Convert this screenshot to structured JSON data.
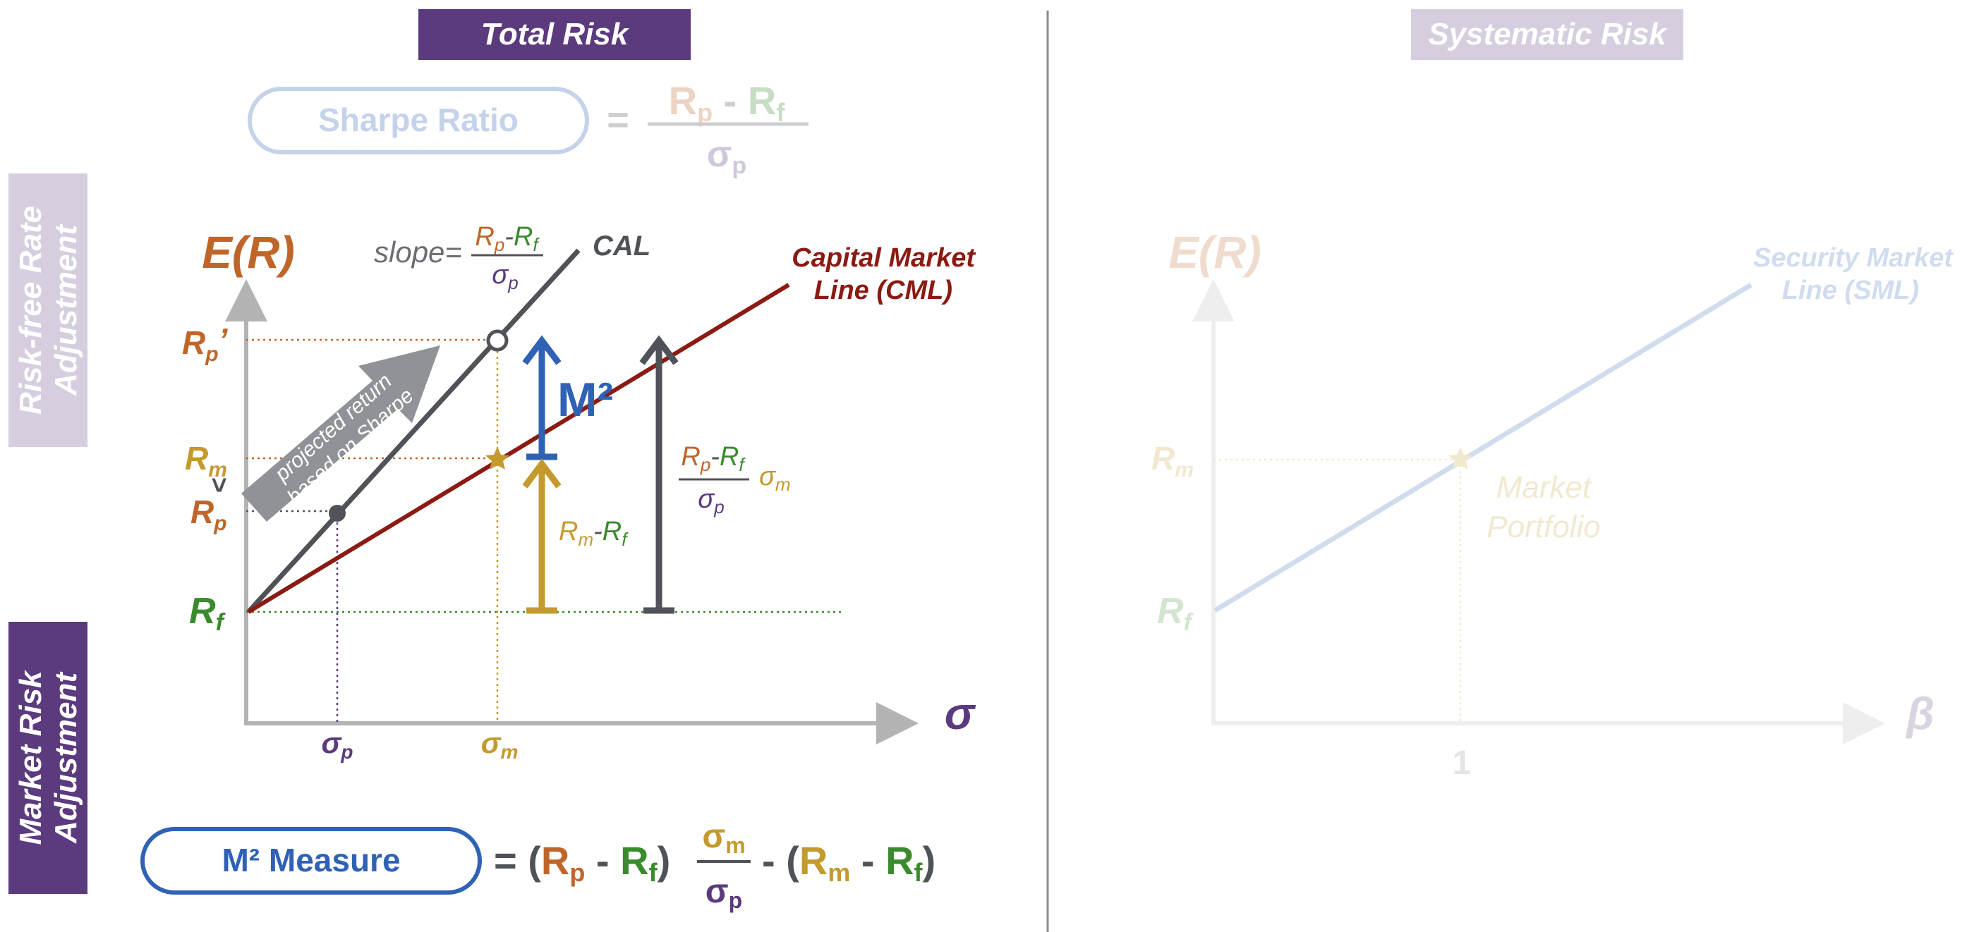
{
  "left_panel": {
    "header": "Total Risk",
    "sharpe": {
      "label": "Sharpe Ratio",
      "equals": "=",
      "numerator": [
        "R",
        "p",
        " - ",
        "R",
        "f"
      ],
      "denominator": [
        "σ",
        "p"
      ]
    },
    "side_labels": {
      "risk_free": [
        "Risk-free Rate",
        "Adjustment"
      ],
      "market_risk": [
        "Market Risk",
        "Adjustment"
      ]
    },
    "y_axis_label": "E(R)",
    "x_axis_label": "σ",
    "y_ticks": {
      "rp_prime": [
        "R",
        "p",
        "’"
      ],
      "rm": [
        "R",
        "m"
      ],
      "gt": ">",
      "rp": [
        "R",
        "p"
      ],
      "rf": [
        "R",
        "f"
      ]
    },
    "x_ticks": {
      "sigma_p": [
        "σ",
        "p"
      ],
      "sigma_m": [
        "σ",
        "m"
      ]
    },
    "slope": {
      "prefix": "slope=",
      "num": [
        "R",
        "p",
        "-",
        "R",
        "f"
      ],
      "den": [
        "σ",
        "p"
      ]
    },
    "cal_label": "CAL",
    "cml_label": [
      "Capital Market",
      "Line (CML)"
    ],
    "arrow_text": [
      "projected return",
      "based on Sharpe"
    ],
    "m2_label": "M²",
    "rm_rf_label": [
      "R",
      "m",
      "-",
      "R",
      "f"
    ],
    "sharpe_times_sigma": {
      "num": [
        "R",
        "p",
        "-",
        "R",
        "f"
      ],
      "den": [
        "σ",
        "p"
      ],
      "tail": [
        "σ",
        "m"
      ]
    },
    "m2_measure": {
      "label": "M² Measure",
      "formula": [
        "= (",
        "R",
        "p",
        " - ",
        "R",
        "f",
        ")",
        "σ",
        "m",
        "σ",
        "p",
        " - (",
        "R",
        "m",
        " - ",
        "R",
        "f",
        ")"
      ]
    }
  },
  "right_panel": {
    "header": "Systematic Risk",
    "y_axis_label": "E(R)",
    "x_axis_label": "β",
    "y_ticks": {
      "rm": [
        "R",
        "m"
      ],
      "rf": [
        "R",
        "f"
      ]
    },
    "x_tick": "1",
    "sml_label": [
      "Security Market",
      "Line (SML)"
    ],
    "market_portfolio": [
      "Market",
      "Portfolio"
    ]
  },
  "colors": {
    "purple": "#5b3a7e",
    "orange": "#c0652a",
    "green": "#3a8a2e",
    "gold": "#c49a2e",
    "red": "#8b1a13",
    "blue": "#2f62b5",
    "dark": "#4f5358",
    "gray_arrow": "#8f9296"
  }
}
